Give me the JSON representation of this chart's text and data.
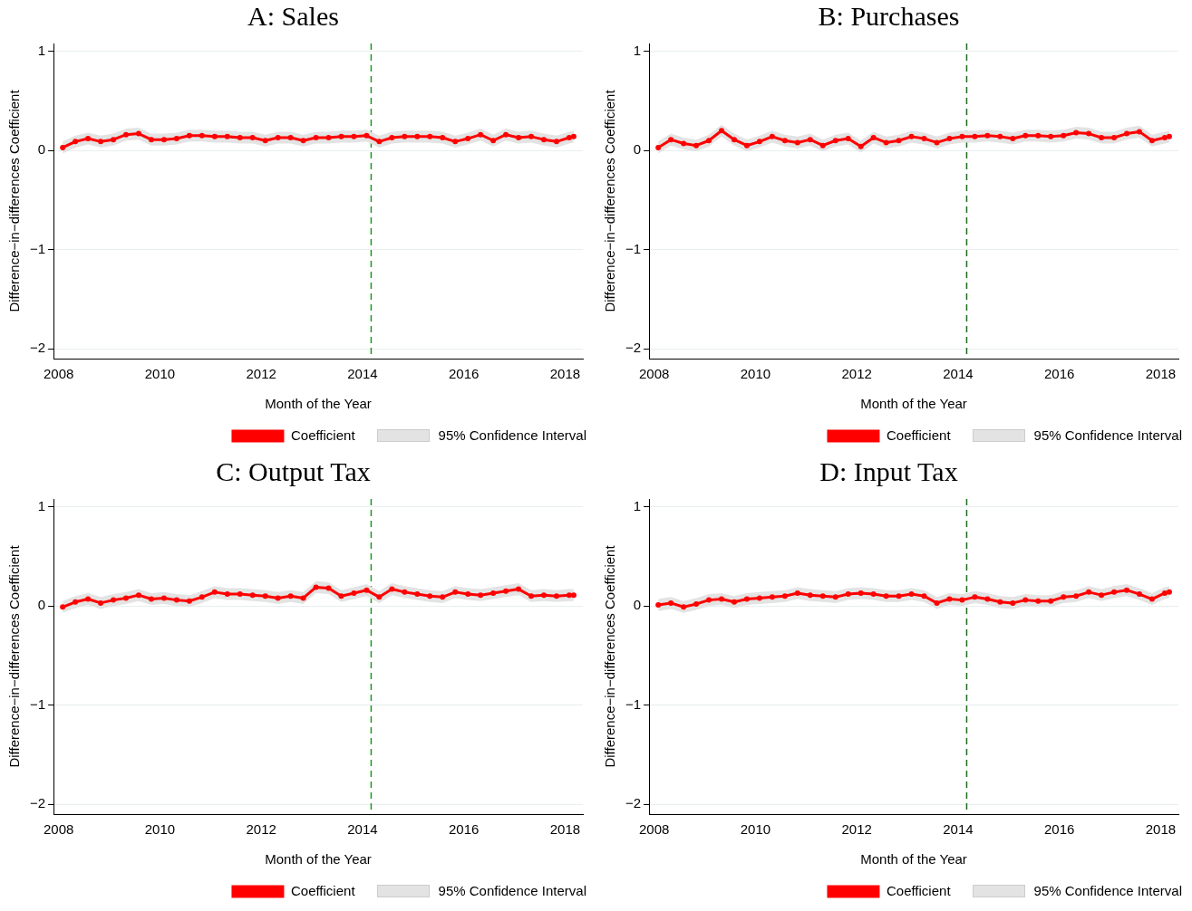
{
  "chart_data": [
    {
      "type": "line",
      "title": "A: Sales",
      "xlabel": "Month of the Year",
      "ylabel": "Difference−in−differences Coefficient",
      "annotations": [
        "95% Confidence Interval"
      ],
      "x": [
        2008.08,
        2008.33,
        2008.58,
        2008.83,
        2009.08,
        2009.33,
        2009.58,
        2009.83,
        2010.08,
        2010.33,
        2010.58,
        2010.83,
        2011.08,
        2011.33,
        2011.58,
        2011.83,
        2012.08,
        2012.33,
        2012.58,
        2012.83,
        2013.08,
        2013.33,
        2013.58,
        2013.83,
        2014.08,
        2014.33,
        2014.58,
        2014.83,
        2015.08,
        2015.33,
        2015.58,
        2015.83,
        2016.08,
        2016.33,
        2016.58,
        2016.83,
        2017.08,
        2017.33,
        2017.58,
        2017.83,
        2018.08,
        2018.17
      ],
      "series": [
        {
          "name": "Coefficient",
          "color": "#ff0000",
          "values": [
            0.03,
            0.09,
            0.12,
            0.09,
            0.11,
            0.16,
            0.17,
            0.11,
            0.11,
            0.12,
            0.15,
            0.15,
            0.14,
            0.14,
            0.13,
            0.13,
            0.1,
            0.13,
            0.13,
            0.1,
            0.13,
            0.13,
            0.14,
            0.14,
            0.15,
            0.09,
            0.13,
            0.14,
            0.14,
            0.14,
            0.13,
            0.09,
            0.12,
            0.16,
            0.1,
            0.16,
            0.13,
            0.14,
            0.11,
            0.09,
            0.13,
            0.14
          ],
          "lower": [
            -0.03,
            0.03,
            0.06,
            0.03,
            0.05,
            0.1,
            0.11,
            0.05,
            0.05,
            0.06,
            0.09,
            0.09,
            0.08,
            0.08,
            0.07,
            0.07,
            0.04,
            0.07,
            0.07,
            0.04,
            0.07,
            0.07,
            0.08,
            0.08,
            0.09,
            0.03,
            0.07,
            0.08,
            0.08,
            0.08,
            0.07,
            0.03,
            0.06,
            0.1,
            0.04,
            0.1,
            0.07,
            0.08,
            0.05,
            0.03,
            0.07,
            0.08
          ],
          "upper": [
            0.09,
            0.15,
            0.18,
            0.15,
            0.17,
            0.22,
            0.23,
            0.17,
            0.17,
            0.18,
            0.21,
            0.21,
            0.2,
            0.2,
            0.19,
            0.19,
            0.16,
            0.19,
            0.19,
            0.16,
            0.19,
            0.19,
            0.2,
            0.2,
            0.21,
            0.15,
            0.19,
            0.2,
            0.2,
            0.2,
            0.19,
            0.15,
            0.18,
            0.22,
            0.16,
            0.22,
            0.19,
            0.2,
            0.17,
            0.15,
            0.19,
            0.2
          ]
        }
      ],
      "xlim": [
        2007.9,
        2018.35
      ],
      "xticks": [
        2008,
        2010,
        2012,
        2014,
        2016,
        2018
      ],
      "ylim": [
        -2.1,
        1.08
      ],
      "yticks": [
        -2,
        -1,
        0,
        1
      ],
      "ref_lines": [
        {
          "axis": "x",
          "value": 2014.17,
          "color": "#1a9a1a",
          "line_style": "dashed"
        }
      ],
      "grid": "y",
      "legend": "bottom",
      "marker": "circle"
    },
    {
      "type": "line",
      "title": "B: Purchases",
      "xlabel": "Month of the Year",
      "ylabel": "Difference−in−differences Coefficient",
      "annotations": [
        "95% Confidence Interval"
      ],
      "x": [
        2008.08,
        2008.33,
        2008.58,
        2008.83,
        2009.08,
        2009.33,
        2009.58,
        2009.83,
        2010.08,
        2010.33,
        2010.58,
        2010.83,
        2011.08,
        2011.33,
        2011.58,
        2011.83,
        2012.08,
        2012.33,
        2012.58,
        2012.83,
        2013.08,
        2013.33,
        2013.58,
        2013.83,
        2014.08,
        2014.33,
        2014.58,
        2014.83,
        2015.08,
        2015.33,
        2015.58,
        2015.83,
        2016.08,
        2016.33,
        2016.58,
        2016.83,
        2017.08,
        2017.33,
        2017.58,
        2017.83,
        2018.08,
        2018.17
      ],
      "series": [
        {
          "name": "Coefficient",
          "color": "#ff0000",
          "values": [
            0.03,
            0.11,
            0.07,
            0.05,
            0.1,
            0.2,
            0.11,
            0.05,
            0.09,
            0.14,
            0.1,
            0.08,
            0.11,
            0.05,
            0.1,
            0.12,
            0.04,
            0.13,
            0.08,
            0.1,
            0.14,
            0.12,
            0.08,
            0.12,
            0.14,
            0.14,
            0.15,
            0.14,
            0.12,
            0.15,
            0.15,
            0.14,
            0.15,
            0.18,
            0.17,
            0.13,
            0.13,
            0.17,
            0.19,
            0.1,
            0.13,
            0.14
          ],
          "lower": [
            -0.03,
            0.05,
            0.01,
            -0.01,
            0.04,
            0.14,
            0.05,
            -0.01,
            0.03,
            0.08,
            0.04,
            0.02,
            0.05,
            -0.01,
            0.04,
            0.06,
            -0.02,
            0.07,
            0.02,
            0.04,
            0.08,
            0.06,
            0.02,
            0.06,
            0.08,
            0.08,
            0.09,
            0.08,
            0.06,
            0.09,
            0.09,
            0.08,
            0.09,
            0.12,
            0.11,
            0.07,
            0.07,
            0.11,
            0.13,
            0.04,
            0.07,
            0.08
          ],
          "upper": [
            0.09,
            0.17,
            0.13,
            0.11,
            0.16,
            0.26,
            0.17,
            0.11,
            0.15,
            0.2,
            0.16,
            0.14,
            0.17,
            0.11,
            0.16,
            0.18,
            0.1,
            0.19,
            0.14,
            0.16,
            0.2,
            0.18,
            0.14,
            0.18,
            0.2,
            0.2,
            0.21,
            0.2,
            0.18,
            0.21,
            0.21,
            0.2,
            0.21,
            0.24,
            0.23,
            0.19,
            0.19,
            0.23,
            0.25,
            0.16,
            0.19,
            0.2
          ]
        }
      ],
      "xlim": [
        2007.9,
        2018.35
      ],
      "xticks": [
        2008,
        2010,
        2012,
        2014,
        2016,
        2018
      ],
      "ylim": [
        -2.1,
        1.08
      ],
      "yticks": [
        -2,
        -1,
        0,
        1
      ],
      "ref_lines": [
        {
          "axis": "x",
          "value": 2014.17,
          "color": "#1e6b1e",
          "line_style": "dashed"
        }
      ],
      "grid": "y",
      "legend": "bottom",
      "marker": "circle"
    },
    {
      "type": "line",
      "title": "C: Output Tax",
      "xlabel": "Month of the Year",
      "ylabel": "Difference−in−differences Coefficient",
      "annotations": [
        "95% Confidence Interval"
      ],
      "x": [
        2008.08,
        2008.33,
        2008.58,
        2008.83,
        2009.08,
        2009.33,
        2009.58,
        2009.83,
        2010.08,
        2010.33,
        2010.58,
        2010.83,
        2011.08,
        2011.33,
        2011.58,
        2011.83,
        2012.08,
        2012.33,
        2012.58,
        2012.83,
        2013.08,
        2013.33,
        2013.58,
        2013.83,
        2014.08,
        2014.33,
        2014.58,
        2014.83,
        2015.08,
        2015.33,
        2015.58,
        2015.83,
        2016.08,
        2016.33,
        2016.58,
        2016.83,
        2017.08,
        2017.33,
        2017.58,
        2017.83,
        2018.08,
        2018.17
      ],
      "series": [
        {
          "name": "Coefficient",
          "color": "#ff0000",
          "values": [
            -0.01,
            0.04,
            0.07,
            0.03,
            0.06,
            0.08,
            0.11,
            0.07,
            0.08,
            0.06,
            0.05,
            0.09,
            0.14,
            0.12,
            0.12,
            0.11,
            0.1,
            0.08,
            0.1,
            0.08,
            0.19,
            0.18,
            0.1,
            0.13,
            0.16,
            0.09,
            0.17,
            0.14,
            0.12,
            0.1,
            0.09,
            0.14,
            0.12,
            0.11,
            0.13,
            0.15,
            0.17,
            0.1,
            0.11,
            0.1,
            0.11,
            0.11
          ],
          "lower": [
            -0.07,
            -0.02,
            0.01,
            -0.03,
            0.0,
            0.02,
            0.05,
            0.01,
            0.02,
            0.0,
            -0.01,
            0.03,
            0.08,
            0.06,
            0.06,
            0.05,
            0.04,
            0.02,
            0.04,
            0.02,
            0.13,
            0.12,
            0.04,
            0.07,
            0.1,
            0.03,
            0.11,
            0.08,
            0.06,
            0.04,
            0.03,
            0.08,
            0.06,
            0.05,
            0.07,
            0.09,
            0.11,
            0.04,
            0.05,
            0.04,
            0.05,
            0.05
          ],
          "upper": [
            0.05,
            0.1,
            0.13,
            0.09,
            0.12,
            0.14,
            0.17,
            0.13,
            0.14,
            0.12,
            0.11,
            0.15,
            0.2,
            0.18,
            0.18,
            0.17,
            0.16,
            0.14,
            0.16,
            0.14,
            0.25,
            0.24,
            0.16,
            0.19,
            0.22,
            0.15,
            0.23,
            0.2,
            0.18,
            0.16,
            0.15,
            0.2,
            0.18,
            0.17,
            0.19,
            0.21,
            0.23,
            0.16,
            0.17,
            0.16,
            0.17,
            0.17
          ]
        }
      ],
      "xlim": [
        2007.9,
        2018.35
      ],
      "xticks": [
        2008,
        2010,
        2012,
        2014,
        2016,
        2018
      ],
      "ylim": [
        -2.1,
        1.08
      ],
      "yticks": [
        -2,
        -1,
        0,
        1
      ],
      "ref_lines": [
        {
          "axis": "x",
          "value": 2014.17,
          "color": "#1a9a1a",
          "line_style": "dashed"
        }
      ],
      "grid": "y",
      "legend": "bottom",
      "marker": "circle"
    },
    {
      "type": "line",
      "title": "D: Input Tax",
      "xlabel": "Month of the Year",
      "ylabel": "Difference−in−differences Coefficient",
      "annotations": [
        "95% Confidence Interval"
      ],
      "x": [
        2008.08,
        2008.33,
        2008.58,
        2008.83,
        2009.08,
        2009.33,
        2009.58,
        2009.83,
        2010.08,
        2010.33,
        2010.58,
        2010.83,
        2011.08,
        2011.33,
        2011.58,
        2011.83,
        2012.08,
        2012.33,
        2012.58,
        2012.83,
        2013.08,
        2013.33,
        2013.58,
        2013.83,
        2014.08,
        2014.33,
        2014.58,
        2014.83,
        2015.08,
        2015.33,
        2015.58,
        2015.83,
        2016.08,
        2016.33,
        2016.58,
        2016.83,
        2017.08,
        2017.33,
        2017.58,
        2017.83,
        2018.08,
        2018.17
      ],
      "series": [
        {
          "name": "Coefficient",
          "color": "#ff0000",
          "values": [
            0.01,
            0.03,
            -0.01,
            0.02,
            0.06,
            0.07,
            0.04,
            0.07,
            0.08,
            0.09,
            0.1,
            0.13,
            0.11,
            0.1,
            0.09,
            0.12,
            0.13,
            0.12,
            0.1,
            0.1,
            0.12,
            0.1,
            0.03,
            0.07,
            0.06,
            0.09,
            0.07,
            0.04,
            0.03,
            0.06,
            0.05,
            0.05,
            0.09,
            0.1,
            0.14,
            0.11,
            0.14,
            0.16,
            0.12,
            0.07,
            0.13,
            0.14
          ],
          "lower": [
            -0.05,
            -0.03,
            -0.07,
            -0.04,
            0.0,
            0.01,
            -0.02,
            0.01,
            0.02,
            0.03,
            0.04,
            0.07,
            0.05,
            0.04,
            0.03,
            0.06,
            0.07,
            0.06,
            0.04,
            0.04,
            0.06,
            0.04,
            -0.03,
            0.01,
            0.0,
            0.03,
            0.01,
            -0.02,
            -0.03,
            0.0,
            -0.01,
            -0.01,
            0.03,
            0.04,
            0.08,
            0.05,
            0.08,
            0.1,
            0.06,
            0.01,
            0.07,
            0.08
          ],
          "upper": [
            0.07,
            0.09,
            0.05,
            0.08,
            0.12,
            0.13,
            0.1,
            0.13,
            0.14,
            0.15,
            0.16,
            0.19,
            0.17,
            0.16,
            0.15,
            0.18,
            0.19,
            0.18,
            0.16,
            0.16,
            0.18,
            0.16,
            0.09,
            0.13,
            0.12,
            0.15,
            0.13,
            0.1,
            0.09,
            0.12,
            0.11,
            0.11,
            0.15,
            0.16,
            0.2,
            0.17,
            0.2,
            0.22,
            0.18,
            0.13,
            0.19,
            0.2
          ]
        }
      ],
      "xlim": [
        2007.9,
        2018.35
      ],
      "xticks": [
        2008,
        2010,
        2012,
        2014,
        2016,
        2018
      ],
      "ylim": [
        -2.1,
        1.08
      ],
      "yticks": [
        -2,
        -1,
        0,
        1
      ],
      "ref_lines": [
        {
          "axis": "x",
          "value": 2014.17,
          "color": "#1e6b1e",
          "line_style": "dashed"
        }
      ],
      "grid": "y",
      "legend": "bottom",
      "marker": "circle"
    }
  ]
}
